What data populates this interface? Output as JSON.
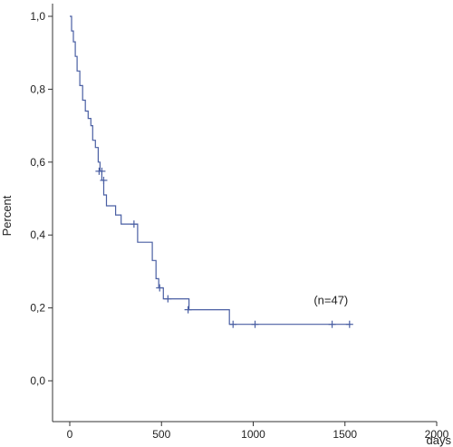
{
  "chart_data": {
    "type": "line",
    "title": "",
    "xlabel": "days",
    "ylabel": "Percent",
    "xlim": [
      0,
      2000
    ],
    "ylim": [
      0,
      1
    ],
    "x_ticks": [
      0,
      500,
      1000,
      1500,
      2000
    ],
    "x_tick_labels": [
      "0",
      "500",
      "1000",
      "1500",
      "2000"
    ],
    "y_ticks": [
      0,
      0.2,
      0.4,
      0.6,
      0.8,
      1.0
    ],
    "y_tick_labels": [
      "0,0",
      "0,2",
      "0,4",
      "0,6",
      "0,8",
      "1,0"
    ],
    "grid": false,
    "colors": {
      "line": "#4a5fa3",
      "axis": "#333333"
    },
    "series": [
      {
        "step_points": [
          [
            0,
            1.0
          ],
          [
            10,
            0.96
          ],
          [
            20,
            0.93
          ],
          [
            30,
            0.89
          ],
          [
            40,
            0.85
          ],
          [
            55,
            0.81
          ],
          [
            70,
            0.77
          ],
          [
            85,
            0.74
          ],
          [
            100,
            0.72
          ],
          [
            115,
            0.7
          ],
          [
            125,
            0.66
          ],
          [
            140,
            0.64
          ],
          [
            155,
            0.6
          ],
          [
            165,
            0.575
          ],
          [
            175,
            0.55
          ],
          [
            185,
            0.51
          ],
          [
            200,
            0.48
          ],
          [
            250,
            0.455
          ],
          [
            280,
            0.43
          ],
          [
            370,
            0.38
          ],
          [
            450,
            0.33
          ],
          [
            470,
            0.28
          ],
          [
            485,
            0.255
          ],
          [
            510,
            0.225
          ],
          [
            650,
            0.195
          ],
          [
            870,
            0.155
          ],
          [
            1530,
            0.155
          ]
        ],
        "censored": [
          [
            160,
            0.575
          ],
          [
            175,
            0.575
          ],
          [
            185,
            0.55
          ],
          [
            350,
            0.43
          ],
          [
            490,
            0.255
          ],
          [
            535,
            0.225
          ],
          [
            645,
            0.195
          ],
          [
            890,
            0.155
          ],
          [
            1010,
            0.155
          ],
          [
            1430,
            0.155
          ],
          [
            1525,
            0.155
          ]
        ]
      }
    ],
    "annotations": [
      {
        "text": "(n=47)",
        "x": 1330,
        "y": 0.2
      }
    ]
  }
}
